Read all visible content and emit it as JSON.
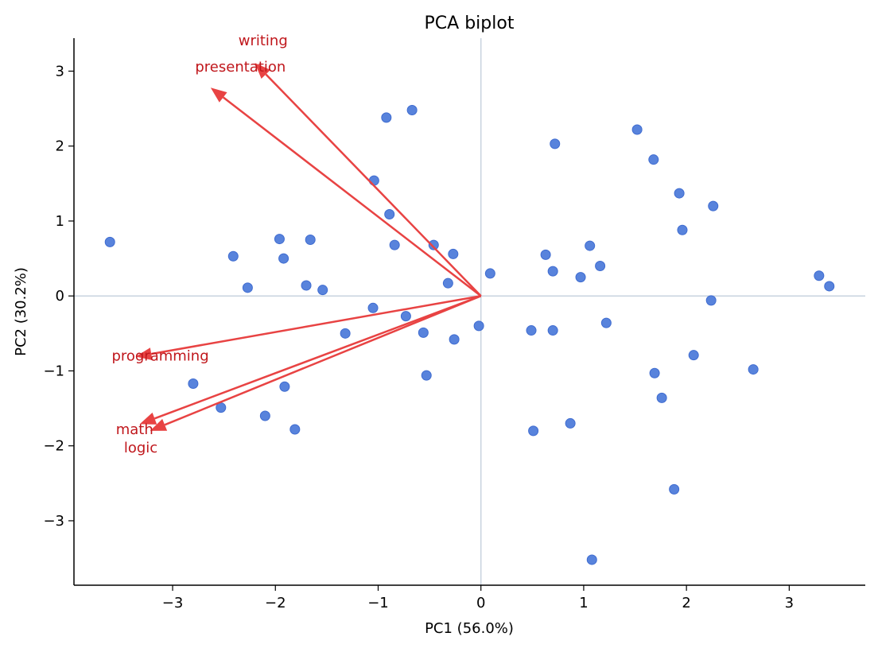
{
  "chart_data": {
    "type": "scatter",
    "title": "PCA biplot",
    "xlabel": "PC1 (56.0%)",
    "ylabel": "PC2 (30.2%)",
    "xlim": [
      -3.96,
      3.74
    ],
    "ylim": [
      -3.86,
      3.44
    ],
    "xticks": [
      -3,
      -2,
      -1,
      0,
      1,
      2,
      3
    ],
    "yticks": [
      -3,
      -2,
      -1,
      0,
      1,
      2,
      3
    ],
    "grid": false,
    "zero_lines": true,
    "colors": {
      "points": "#4a78d9",
      "arrows": "#e84343",
      "labels": "#c0171c",
      "zero_lines": "#c8d3df"
    },
    "points": [
      [
        -3.61,
        0.72
      ],
      [
        -0.92,
        2.38
      ],
      [
        -0.67,
        2.48
      ],
      [
        0.72,
        2.03
      ],
      [
        1.52,
        2.22
      ],
      [
        1.68,
        1.82
      ],
      [
        1.93,
        1.37
      ],
      [
        2.26,
        1.2
      ],
      [
        1.96,
        0.88
      ],
      [
        -1.04,
        1.54
      ],
      [
        -0.89,
        1.09
      ],
      [
        -0.84,
        0.68
      ],
      [
        -0.46,
        0.68
      ],
      [
        -0.27,
        0.56
      ],
      [
        -0.32,
        0.17
      ],
      [
        0.09,
        0.3
      ],
      [
        0.63,
        0.55
      ],
      [
        0.7,
        0.33
      ],
      [
        1.06,
        0.67
      ],
      [
        1.16,
        0.4
      ],
      [
        0.97,
        0.25
      ],
      [
        -1.96,
        0.76
      ],
      [
        -1.66,
        0.75
      ],
      [
        -2.41,
        0.53
      ],
      [
        -1.92,
        0.5
      ],
      [
        -2.27,
        0.11
      ],
      [
        -1.7,
        0.14
      ],
      [
        -1.54,
        0.08
      ],
      [
        3.29,
        0.27
      ],
      [
        3.39,
        0.13
      ],
      [
        2.24,
        -0.06
      ],
      [
        -1.05,
        -0.16
      ],
      [
        -0.73,
        -0.27
      ],
      [
        -1.32,
        -0.5
      ],
      [
        -0.56,
        -0.49
      ],
      [
        -0.26,
        -0.58
      ],
      [
        -0.02,
        -0.4
      ],
      [
        0.49,
        -0.46
      ],
      [
        0.7,
        -0.46
      ],
      [
        1.22,
        -0.36
      ],
      [
        2.07,
        -0.79
      ],
      [
        2.65,
        -0.98
      ],
      [
        1.69,
        -1.03
      ],
      [
        -0.53,
        -1.06
      ],
      [
        1.76,
        -1.36
      ],
      [
        -2.8,
        -1.17
      ],
      [
        -1.91,
        -1.21
      ],
      [
        -2.53,
        -1.49
      ],
      [
        -2.1,
        -1.6
      ],
      [
        -1.81,
        -1.78
      ],
      [
        0.51,
        -1.8
      ],
      [
        0.87,
        -1.7
      ],
      [
        1.88,
        -2.58
      ],
      [
        1.08,
        -3.52
      ]
    ],
    "loadings": [
      {
        "name": "writing",
        "x": -2.2,
        "y": 3.11,
        "label_x": -2.12,
        "label_y": 3.41
      },
      {
        "name": "presentation",
        "x": -2.63,
        "y": 2.78,
        "label_x": -2.34,
        "label_y": 3.06
      },
      {
        "name": "programming",
        "x": -3.36,
        "y": -0.81,
        "label_x": -3.12,
        "label_y": -0.8
      },
      {
        "name": "math",
        "x": -3.32,
        "y": -1.71,
        "label_x": -3.37,
        "label_y": -1.78
      },
      {
        "name": "logic",
        "x": -3.22,
        "y": -1.8,
        "label_x": -3.31,
        "label_y": -1.89
      }
    ]
  }
}
